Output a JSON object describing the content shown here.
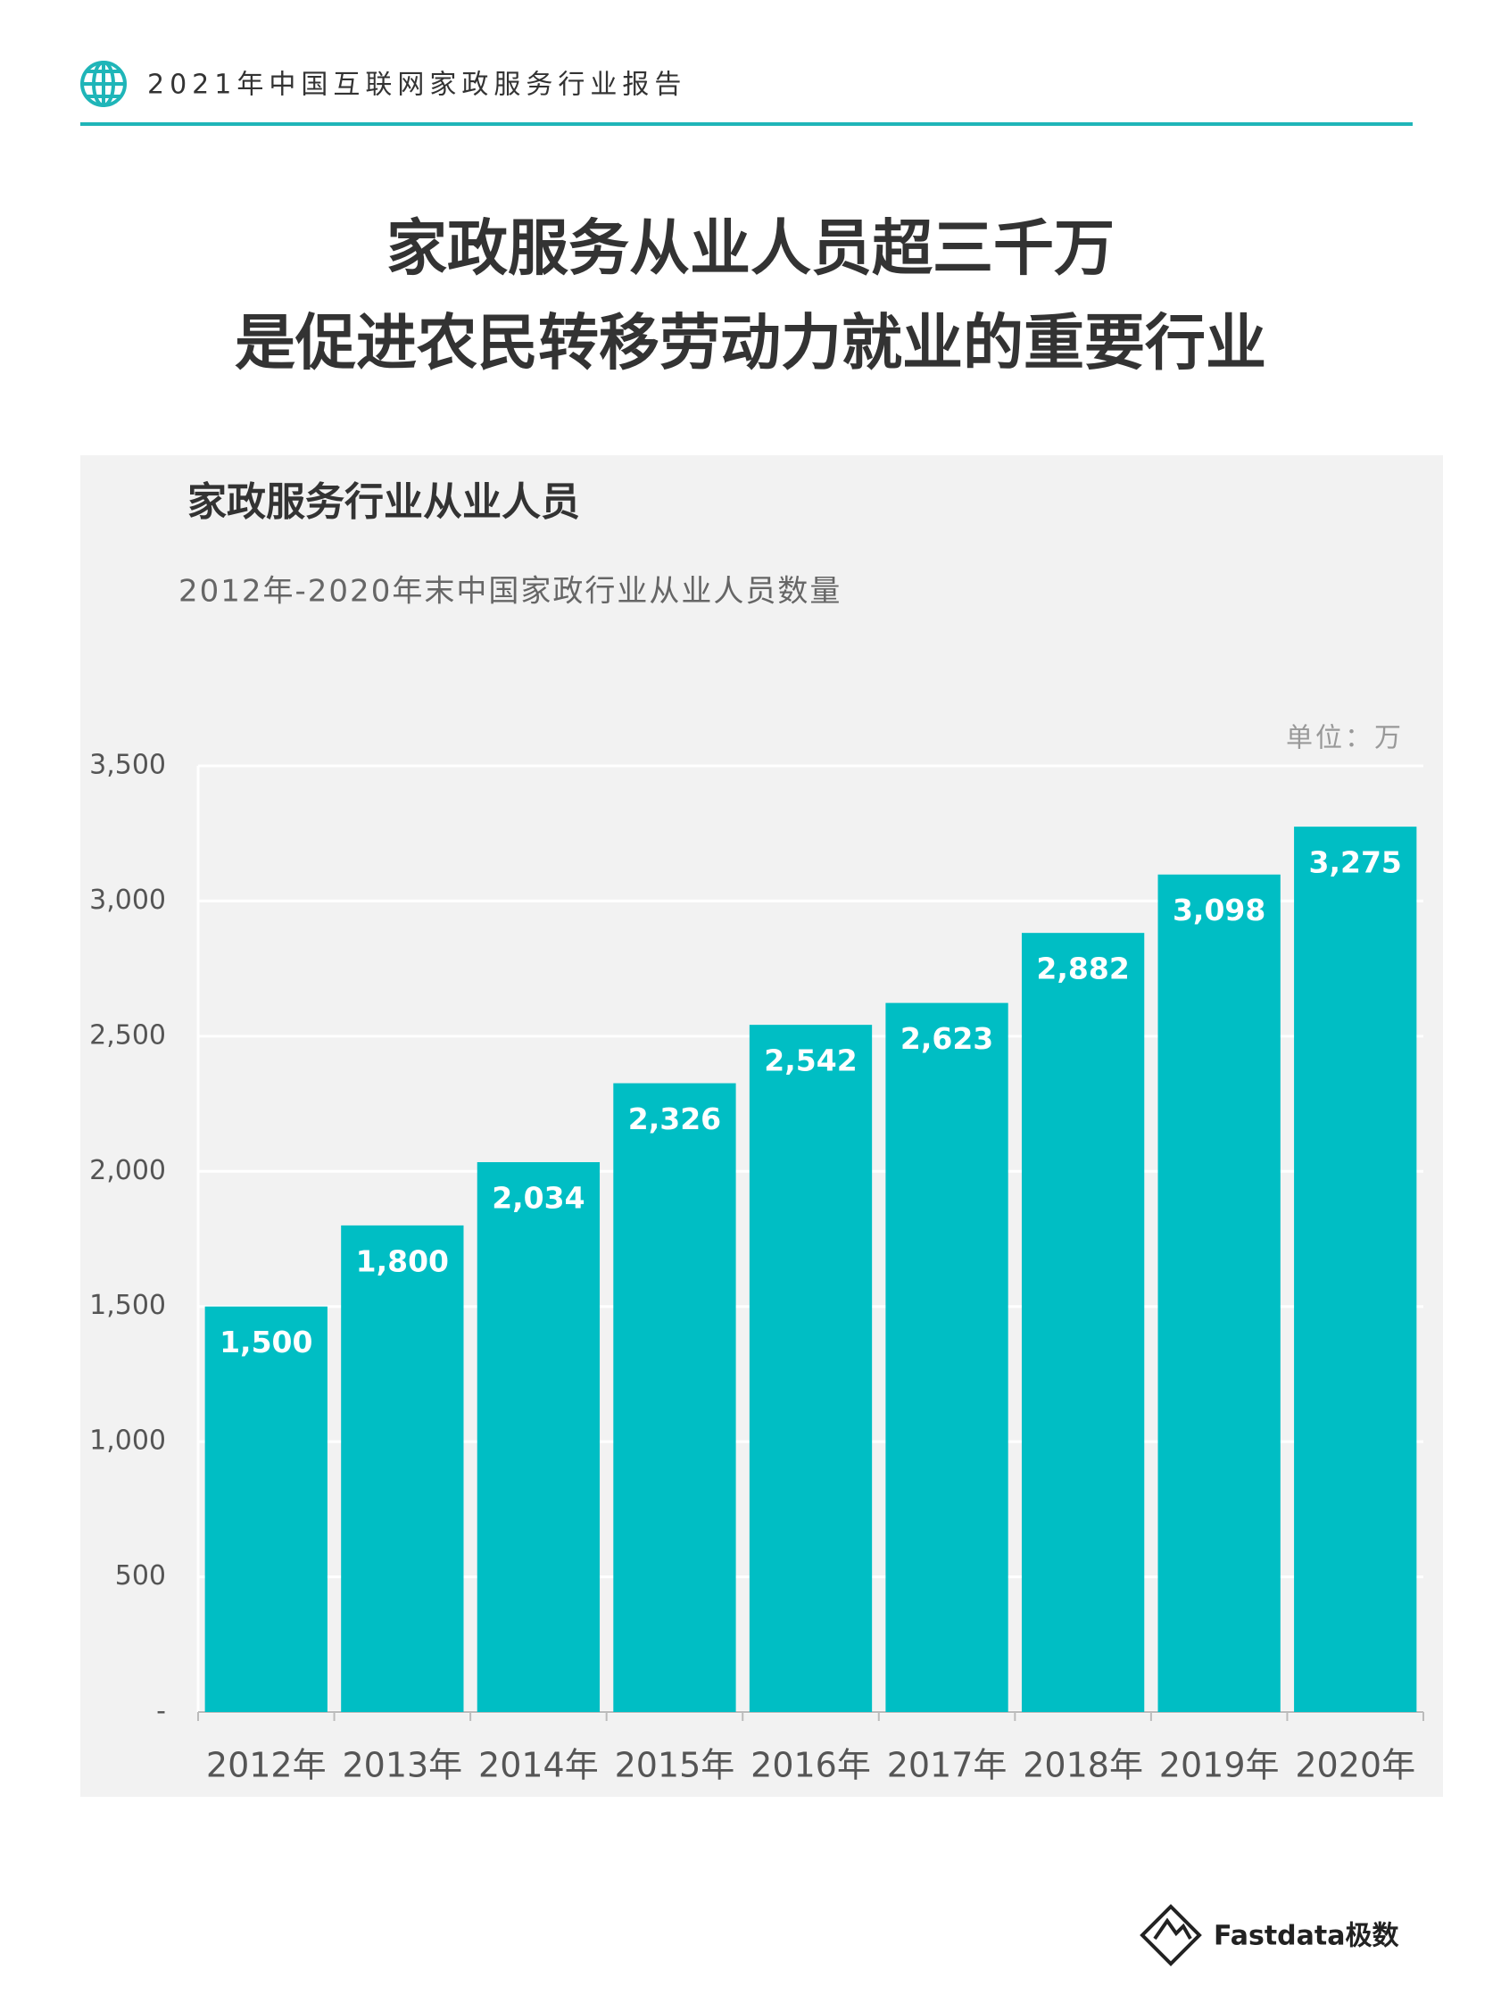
{
  "header": {
    "text": "2021年中国互联网家政服务行业报告"
  },
  "page_title": [
    "家政服务从业人员超三千万",
    "是促进农民转移劳动力就业的重要行业"
  ],
  "chart_data": {
    "type": "bar",
    "title": "家政服务行业从业人员",
    "subtitle": "2012年-2020年末中国家政行业从业人员数量",
    "unit": "单位：万",
    "categories": [
      "2012年",
      "2013年",
      "2014年",
      "2015年",
      "2016年",
      "2017年",
      "2018年",
      "2019年",
      "2020年"
    ],
    "values": [
      1500,
      1800,
      2034,
      2326,
      2542,
      2623,
      2882,
      3098,
      3275
    ],
    "value_labels": [
      "1,500",
      "1,800",
      "2,034",
      "2,326",
      "2,542",
      "2,623",
      "2,882",
      "3,098",
      "3,275"
    ],
    "color": "#00bec4",
    "ylim": [
      0,
      3500
    ],
    "yticks": [
      {
        "value": 0,
        "label": "-"
      },
      500,
      {
        "value": 1000,
        "label": "1,000"
      },
      {
        "value": 1500,
        "label": "1,500"
      },
      {
        "value": 2000,
        "label": "2,000"
      },
      {
        "value": 2500,
        "label": "2,500"
      },
      {
        "value": 3000,
        "label": "3,000"
      },
      {
        "value": 3500,
        "label": "3,500"
      }
    ],
    "grid": true
  },
  "footer": {
    "logo": "Fastdata极数"
  }
}
